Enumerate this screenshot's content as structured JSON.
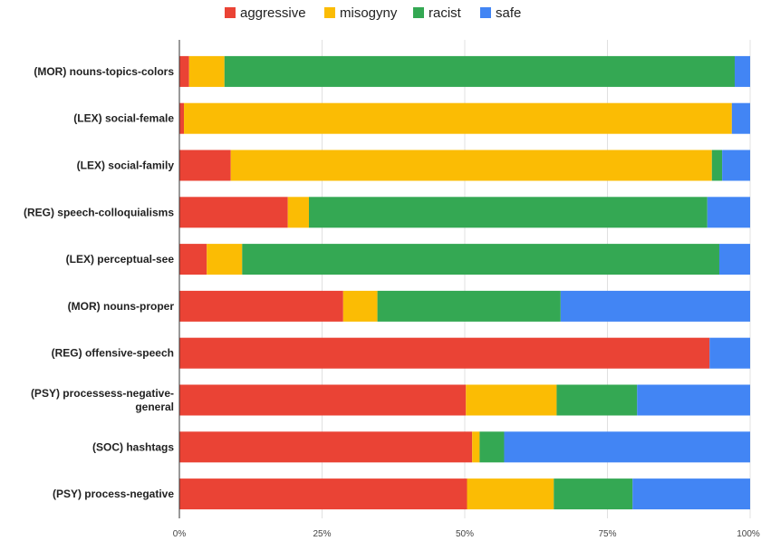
{
  "chart_data": {
    "type": "bar",
    "orientation": "horizontal",
    "stacked": "percent",
    "title": "",
    "xlabel": "",
    "ylabel": "",
    "xlim": [
      0,
      100
    ],
    "x_ticks": [
      "0%",
      "25%",
      "50%",
      "75%",
      "100%"
    ],
    "legend_position": "top",
    "categories": [
      [
        "(MOR) nouns-topics-colors"
      ],
      [
        "(LEX) social-female"
      ],
      [
        "(LEX) social-family"
      ],
      [
        "(REG) speech-colloquialisms"
      ],
      [
        "(LEX) perceptual-see"
      ],
      [
        "(MOR) nouns-proper"
      ],
      [
        "(REG) offensive-speech"
      ],
      [
        "(PSY) processess-negative-",
        "general"
      ],
      [
        "(SOC) hashtags"
      ],
      [
        "(PSY) process-negative"
      ]
    ],
    "series": [
      {
        "name": "aggressive",
        "color": "#ea4335",
        "values": [
          1.7,
          0.8,
          9.0,
          19.0,
          4.8,
          28.7,
          92.9,
          50.2,
          51.3,
          50.4
        ]
      },
      {
        "name": "misogyny",
        "color": "#fbbc04",
        "values": [
          6.2,
          96.0,
          84.3,
          3.7,
          6.2,
          6.0,
          0.0,
          15.9,
          1.3,
          15.2
        ]
      },
      {
        "name": "racist",
        "color": "#34a853",
        "values": [
          89.4,
          0.0,
          1.8,
          69.8,
          83.6,
          32.1,
          0.0,
          14.1,
          4.3,
          13.8
        ]
      },
      {
        "name": "safe",
        "color": "#4285f4",
        "values": [
          2.7,
          3.2,
          4.9,
          7.5,
          5.4,
          33.2,
          7.1,
          19.8,
          43.1,
          20.6
        ]
      }
    ]
  }
}
